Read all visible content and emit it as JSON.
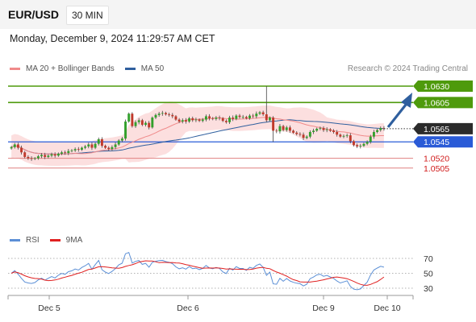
{
  "header": {
    "symbol": "EUR/USD",
    "timeframe": "30 MIN",
    "datetime": "Monday, December 9, 2024 11:29:57 AM CET"
  },
  "legend": {
    "items": [
      {
        "label": "MA 20 + Bollinger Bands",
        "color": "#f08a8a"
      },
      {
        "label": "MA 50",
        "color": "#2f5f9e"
      }
    ],
    "copyright": "Research © 2024 Trading Central"
  },
  "rsi_legend": {
    "items": [
      {
        "label": "RSI",
        "color": "#5b8fd6"
      },
      {
        "label": "9MA",
        "color": "#e02020"
      }
    ]
  },
  "chart_data": {
    "type": "candlestick",
    "x_labels": [
      "Dec 5",
      "Dec 6",
      "Dec 9",
      "Dec 10"
    ],
    "current_price": "1.0565",
    "ylim": [
      1.049,
      1.0645
    ],
    "levels": [
      {
        "value": 1.063,
        "label": "1.0630",
        "kind": "resistance"
      },
      {
        "value": 1.0605,
        "label": "1.0605",
        "kind": "resistance"
      },
      {
        "value": 1.0545,
        "label": "1.0545",
        "kind": "pivot"
      },
      {
        "value": 1.052,
        "label": "1.0520",
        "kind": "support"
      },
      {
        "value": 1.0505,
        "label": "1.0505",
        "kind": "support"
      }
    ],
    "close_series": [
      1.0537,
      1.0541,
      1.0536,
      1.0529,
      1.0522,
      1.052,
      1.0519,
      1.052,
      1.0523,
      1.0525,
      1.0522,
      1.0524,
      1.0526,
      1.0524,
      1.0527,
      1.0529,
      1.0528,
      1.0531,
      1.0532,
      1.0534,
      1.0533,
      1.0536,
      1.0538,
      1.0541,
      1.0536,
      1.0542,
      1.0549,
      1.0539,
      1.0536,
      1.0534,
      1.0537,
      1.0541,
      1.0547,
      1.055,
      1.0576,
      1.0588,
      1.0569,
      1.0575,
      1.0578,
      1.0571,
      1.0574,
      1.0567,
      1.0582,
      1.0586,
      1.0588,
      1.0589,
      1.0587,
      1.0586,
      1.0584,
      1.0579,
      1.0576,
      1.0578,
      1.0576,
      1.0581,
      1.0578,
      1.0579,
      1.0577,
      1.0579,
      1.0584,
      1.0581,
      1.058,
      1.0582,
      1.0581,
      1.0577,
      1.0575,
      1.0582,
      1.058,
      1.0585,
      1.0583,
      1.0583,
      1.0581,
      1.0585,
      1.0584,
      1.0588,
      1.059,
      1.0587,
      1.0578,
      1.0582,
      1.0562,
      1.0561,
      1.0569,
      1.0563,
      1.0567,
      1.0562,
      1.0559,
      1.0557,
      1.0556,
      1.0551,
      1.0553,
      1.056,
      1.0562,
      1.0565,
      1.0566,
      1.0563,
      1.0564,
      1.0562,
      1.056,
      1.0556,
      1.0553,
      1.0554,
      1.0555,
      1.0546,
      1.054,
      1.0538,
      1.0539,
      1.0542,
      1.0545,
      1.0553,
      1.056,
      1.0563,
      1.0566,
      1.0565
    ],
    "rsi": {
      "levels": [
        70,
        50,
        30
      ],
      "ylim": [
        20,
        80
      ]
    }
  }
}
